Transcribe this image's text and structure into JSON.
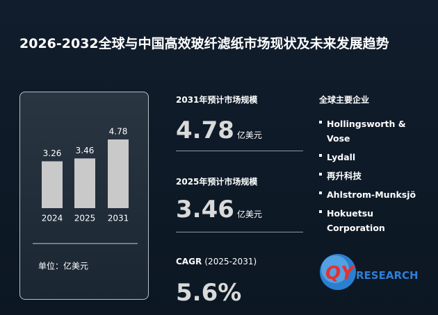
{
  "title": "2026-2032全球与中国高效玻纤滤纸市场现状及未来发展趋势",
  "chart_data": {
    "type": "bar",
    "categories": [
      "2024",
      "2025",
      "2031"
    ],
    "values": [
      3.26,
      3.46,
      4.78
    ],
    "color": "#c9c9c9",
    "unit_label": "单位：亿美元"
  },
  "stats": [
    {
      "label": "2031年预计市场规模",
      "value": "4.78",
      "unit": "亿美元"
    },
    {
      "label": "2025年预计市场规模",
      "value": "3.46",
      "unit": "亿美元"
    },
    {
      "label": "CAGR",
      "label_note": "(2025-2031)",
      "value": "5.6%"
    }
  ],
  "companies_title": "全球主要企业",
  "companies": [
    "Hollingsworth & Vose",
    "Lydall",
    "再升科技",
    "Ahlstrom-Munksjö",
    "Hokuetsu Corporation"
  ],
  "logo": {
    "mark": "QY",
    "text": "RESEARCH"
  }
}
